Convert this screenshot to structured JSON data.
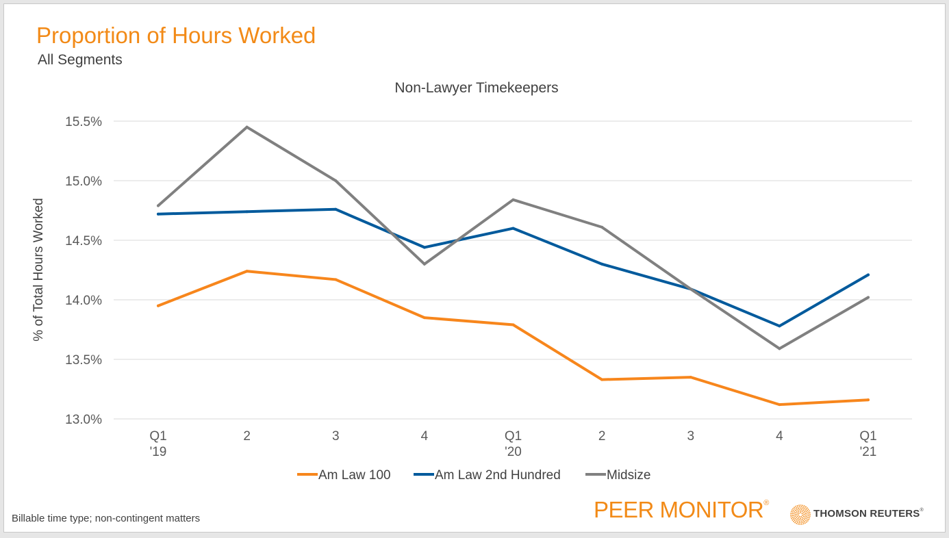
{
  "header": {
    "title": "Proportion of Hours Worked",
    "subtitle": "All Segments"
  },
  "footer": {
    "note": "Billable time type; non-contingent matters",
    "brand": "PEER MONITOR",
    "brand_mark": "®",
    "company": "THOMSON REUTERS",
    "company_mark": "®"
  },
  "colors": {
    "accent": "#f28a17",
    "am_law_100": "#f7861c",
    "am_law_2nd_hundred": "#005a9c",
    "midsize": "#808080",
    "grid": "#d9d9d9"
  },
  "chart_data": {
    "type": "line",
    "title": "Non-Lawyer Timekeepers",
    "xlabel": "",
    "ylabel": "% of Total Hours Worked",
    "ylim": [
      13.0,
      15.5
    ],
    "yticks": [
      13.0,
      13.5,
      14.0,
      14.5,
      15.0,
      15.5
    ],
    "ytick_labels": [
      "13.0%",
      "13.5%",
      "14.0%",
      "14.5%",
      "15.0%",
      "15.5%"
    ],
    "grid": true,
    "legend_position": "bottom",
    "categories": [
      [
        "Q1",
        "'19"
      ],
      [
        "2",
        ""
      ],
      [
        "3",
        ""
      ],
      [
        "4",
        ""
      ],
      [
        "Q1",
        "'20"
      ],
      [
        "2",
        ""
      ],
      [
        "3",
        ""
      ],
      [
        "4",
        ""
      ],
      [
        "Q1",
        "'21"
      ]
    ],
    "series": [
      {
        "name": "Am Law 100",
        "color": "#f7861c",
        "values": [
          13.95,
          14.24,
          14.17,
          13.85,
          13.79,
          13.33,
          13.35,
          13.12,
          13.16
        ]
      },
      {
        "name": "Am Law 2nd Hundred",
        "color": "#005a9c",
        "values": [
          14.72,
          14.74,
          14.76,
          14.44,
          14.6,
          14.3,
          14.09,
          13.78,
          14.21
        ]
      },
      {
        "name": "Midsize",
        "color": "#808080",
        "values": [
          14.79,
          15.45,
          15.0,
          14.3,
          14.84,
          14.61,
          14.09,
          13.59,
          14.02
        ]
      }
    ]
  }
}
